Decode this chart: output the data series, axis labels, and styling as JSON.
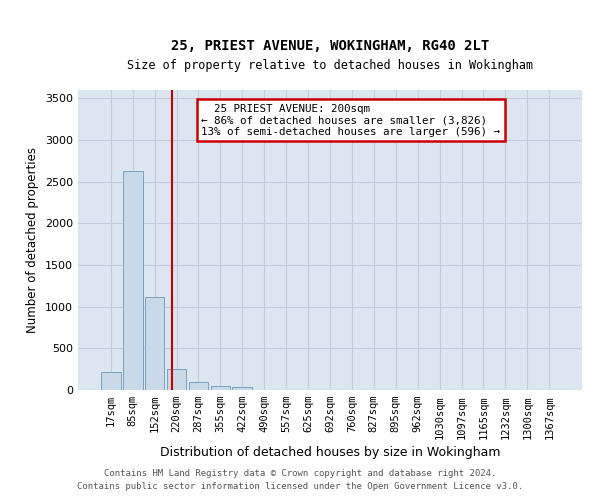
{
  "title": "25, PRIEST AVENUE, WOKINGHAM, RG40 2LT",
  "subtitle": "Size of property relative to detached houses in Wokingham",
  "xlabel": "Distribution of detached houses by size in Wokingham",
  "ylabel": "Number of detached properties",
  "footnote1": "Contains HM Land Registry data © Crown copyright and database right 2024.",
  "footnote2": "Contains public sector information licensed under the Open Government Licence v3.0.",
  "bar_color": "#c9d9e8",
  "bar_edge_color": "#7aA0c0",
  "grid_color": "#c0ccdd",
  "vline_color": "#cc0000",
  "annotation_text": "  25 PRIEST AVENUE: 200sqm\n← 86% of detached houses are smaller (3,826)\n13% of semi-detached houses are larger (596) →",
  "annotation_box_color": "#cc0000",
  "annotation_bg": "white",
  "categories": [
    "17sqm",
    "85sqm",
    "152sqm",
    "220sqm",
    "287sqm",
    "355sqm",
    "422sqm",
    "490sqm",
    "557sqm",
    "625sqm",
    "692sqm",
    "760sqm",
    "827sqm",
    "895sqm",
    "962sqm",
    "1030sqm",
    "1097sqm",
    "1165sqm",
    "1232sqm",
    "1300sqm",
    "1367sqm"
  ],
  "bar_heights": [
    220,
    2630,
    1120,
    250,
    95,
    50,
    35,
    0,
    0,
    0,
    0,
    0,
    0,
    0,
    0,
    0,
    0,
    0,
    0,
    0,
    0
  ],
  "ylim": [
    0,
    3600
  ],
  "yticks": [
    0,
    500,
    1000,
    1500,
    2000,
    2500,
    3000,
    3500
  ],
  "background_color": "#dce6f0",
  "vline_index": 2.78
}
